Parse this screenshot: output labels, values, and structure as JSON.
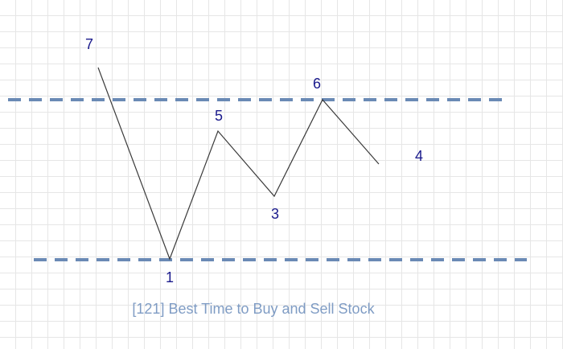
{
  "diagram": {
    "title": "[121] Best Time to Buy and Sell Stock",
    "points": [
      {
        "label": "7"
      },
      {
        "label": "1"
      },
      {
        "label": "5"
      },
      {
        "label": "3"
      },
      {
        "label": "6"
      },
      {
        "label": "4"
      }
    ],
    "colors": {
      "line": "#3a3a3a",
      "dashed_guides": "#6a8ab5",
      "point_labels": "#1a1a8c",
      "title": "#7f9cc4",
      "grid": "#e6e6e6"
    }
  }
}
